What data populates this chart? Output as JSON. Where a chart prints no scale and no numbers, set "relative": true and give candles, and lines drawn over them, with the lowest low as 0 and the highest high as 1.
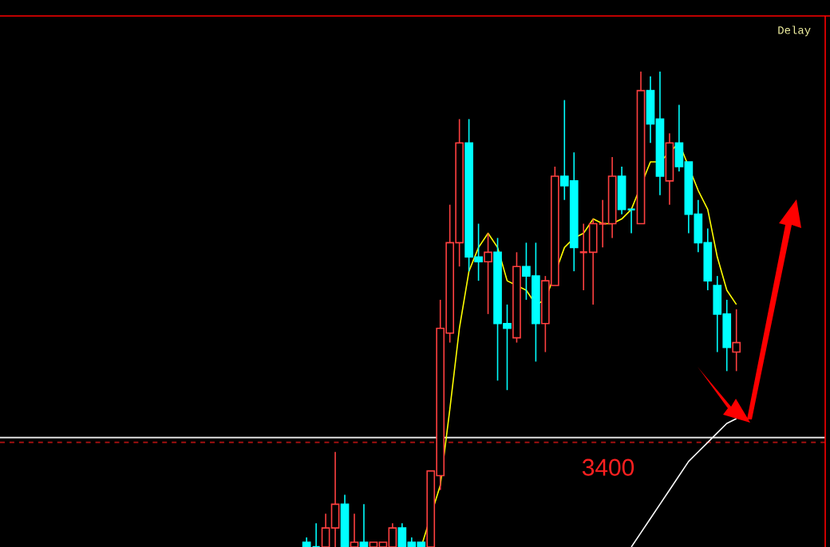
{
  "chart_data": {
    "type": "candlestick",
    "relative": true,
    "categories": [
      null,
      null,
      null,
      null,
      null,
      null,
      null,
      null,
      null,
      null,
      null,
      null,
      null,
      null,
      null,
      null,
      null,
      null,
      null,
      null,
      null,
      null,
      null,
      null,
      null,
      null,
      null,
      null,
      null,
      null,
      null,
      null,
      null,
      null,
      null,
      null,
      null,
      null,
      null,
      null,
      null,
      null,
      null,
      null,
      null,
      null
    ],
    "ohlc": [
      [
        0.01,
        0.02,
        0,
        0
      ],
      [
        0,
        0.05,
        0,
        0
      ],
      [
        0,
        0.07,
        0,
        0.04
      ],
      [
        0.04,
        0.2,
        0,
        0.09
      ],
      [
        0.09,
        0.11,
        0,
        0
      ],
      [
        0,
        0.07,
        0,
        0.01
      ],
      [
        0.01,
        0.09,
        0,
        0
      ],
      [
        0,
        0.01,
        0,
        0.01
      ],
      [
        0,
        0.01,
        0,
        0.01
      ],
      [
        0,
        0.05,
        0,
        0.04
      ],
      [
        0.04,
        0.05,
        0,
        0
      ],
      [
        0.01,
        0.02,
        0,
        0
      ],
      [
        0.01,
        0.01,
        0,
        0
      ],
      [
        0,
        0.16,
        0,
        0.16
      ],
      [
        0.15,
        0.52,
        0.12,
        0.46
      ],
      [
        0.45,
        0.72,
        0.43,
        0.64
      ],
      [
        0.64,
        0.9,
        0.59,
        0.85
      ],
      [
        0.85,
        0.9,
        0.58,
        0.61
      ],
      [
        0.61,
        0.68,
        0.56,
        0.6
      ],
      [
        0.6,
        0.66,
        0.49,
        0.62
      ],
      [
        0.62,
        0.65,
        0.35,
        0.47
      ],
      [
        0.47,
        0.51,
        0.33,
        0.46
      ],
      [
        0.44,
        0.62,
        0.43,
        0.59
      ],
      [
        0.59,
        0.64,
        0.52,
        0.57
      ],
      [
        0.57,
        0.64,
        0.39,
        0.47
      ],
      [
        0.47,
        0.57,
        0.41,
        0.56
      ],
      [
        0.55,
        0.8,
        0.55,
        0.78
      ],
      [
        0.78,
        0.94,
        0.73,
        0.76
      ],
      [
        0.77,
        0.83,
        0.58,
        0.63
      ],
      [
        0.62,
        0.68,
        0.54,
        0.62
      ],
      [
        0.62,
        0.69,
        0.51,
        0.68
      ],
      [
        0.68,
        0.73,
        0.63,
        0.68
      ],
      [
        0.68,
        0.82,
        0.65,
        0.78
      ],
      [
        0.78,
        0.8,
        0.7,
        0.71
      ],
      [
        0.71,
        0.71,
        0.66,
        0.71
      ],
      [
        0.68,
        1.0,
        0.68,
        0.96
      ],
      [
        0.96,
        0.99,
        0.85,
        0.89
      ],
      [
        0.9,
        1.0,
        0.74,
        0.78
      ],
      [
        0.77,
        0.87,
        0.72,
        0.85
      ],
      [
        0.85,
        0.93,
        0.79,
        0.8
      ],
      [
        0.81,
        0.81,
        0.66,
        0.7
      ],
      [
        0.7,
        0.73,
        0.62,
        0.64
      ],
      [
        0.64,
        0.67,
        0.54,
        0.56
      ],
      [
        0.55,
        0.57,
        0.41,
        0.49
      ],
      [
        0.49,
        0.52,
        0.37,
        0.42
      ],
      [
        0.41,
        0.5,
        0.37,
        0.43
      ]
    ],
    "colors": [
      "#00ffff",
      "#00ffff",
      "#ff4040",
      "#ff4040",
      "#00ffff",
      "#ff4040",
      "#00ffff",
      "#ff4040",
      "#ff4040",
      "#ff4040",
      "#00ffff",
      "#00ffff",
      "#00ffff",
      "#ff4040",
      "#ff4040",
      "#ff4040",
      "#ff4040",
      "#00ffff",
      "#00ffff",
      "#ff4040",
      "#00ffff",
      "#00ffff",
      "#ff4040",
      "#00ffff",
      "#00ffff",
      "#ff4040",
      "#ff4040",
      "#00ffff",
      "#00ffff",
      "#ff4040",
      "#ff4040",
      "#ff4040",
      "#ff4040",
      "#00ffff",
      "#00ffff",
      "#ff4040",
      "#00ffff",
      "#00ffff",
      "#ff4040",
      "#00ffff",
      "#00ffff",
      "#00ffff",
      "#00ffff",
      "#00ffff",
      "#00ffff",
      "#ff4040"
    ],
    "series": [
      {
        "type": "line",
        "color": "#ffff00",
        "values": [
          null,
          null,
          null,
          null,
          null,
          null,
          null,
          null,
          null,
          null,
          null,
          null,
          0.0,
          null,
          0.13,
          0.29,
          0.46,
          0.58,
          0.63,
          0.66,
          0.63,
          0.56,
          0.55,
          0.54,
          0.51,
          0.52,
          null,
          0.63,
          0.65,
          0.66,
          0.69,
          0.68,
          0.68,
          0.69,
          0.71,
          null,
          0.81,
          0.81,
          null,
          0.85,
          null,
          0.75,
          0.71,
          0.61,
          0.54,
          0.51
        ]
      },
      {
        "type": "line",
        "color": "#ffffff",
        "values": [
          null,
          null,
          null,
          null,
          null,
          null,
          null,
          null,
          null,
          null,
          null,
          null,
          null,
          null,
          null,
          null,
          null,
          null,
          null,
          null,
          null,
          null,
          null,
          null,
          null,
          null,
          null,
          null,
          null,
          null,
          null,
          null,
          null,
          null,
          0.0,
          0.03,
          0.06,
          0.09,
          0.12,
          0.15,
          0.18,
          0.2,
          0.22,
          0.24,
          0.26,
          0.27
        ]
      }
    ],
    "ref_lines": [
      {
        "axis": "y",
        "value": 0.23,
        "color": "#e0e0e0",
        "line_style": "solid"
      },
      {
        "axis": "y",
        "value": 0.22,
        "color": "#a01010",
        "line_style": "dashed"
      }
    ],
    "annotations": [
      "Delay",
      "3400"
    ]
  }
}
